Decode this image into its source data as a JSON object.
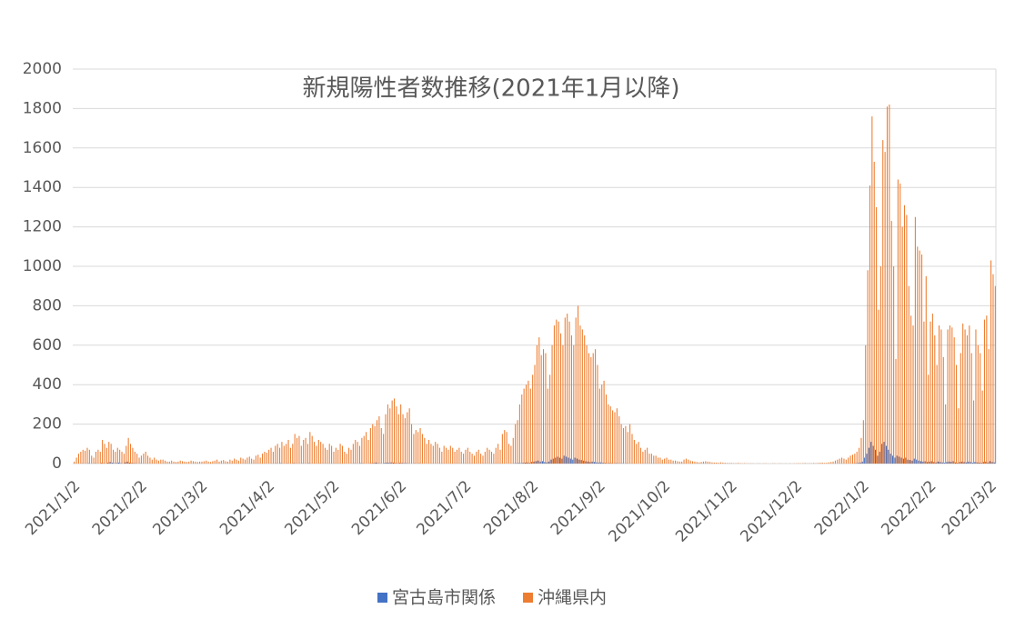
{
  "chart_data": {
    "type": "bar",
    "title": "新規陽性者数推移(2021年1月以降)",
    "categories": [
      "2021/1/2",
      null,
      null,
      null,
      null,
      null,
      null,
      null,
      null,
      null,
      null,
      null,
      null,
      null,
      null,
      null,
      null,
      null,
      null,
      null,
      null,
      null,
      null,
      null,
      null,
      null,
      null,
      null,
      null,
      null,
      null,
      "2021/2/2",
      null,
      null,
      null,
      null,
      null,
      null,
      null,
      null,
      null,
      null,
      null,
      null,
      null,
      null,
      null,
      null,
      null,
      null,
      null,
      null,
      null,
      null,
      null,
      null,
      null,
      null,
      null,
      "2021/3/2",
      null,
      null,
      null,
      null,
      null,
      null,
      null,
      null,
      null,
      null,
      null,
      null,
      null,
      null,
      null,
      null,
      null,
      null,
      null,
      null,
      null,
      null,
      null,
      null,
      null,
      null,
      null,
      null,
      null,
      null,
      "2021/4/2",
      null,
      null,
      null,
      null,
      null,
      null,
      null,
      null,
      null,
      null,
      null,
      null,
      null,
      null,
      null,
      null,
      null,
      null,
      null,
      null,
      null,
      null,
      null,
      null,
      null,
      null,
      null,
      null,
      null,
      "2021/5/2",
      null,
      null,
      null,
      null,
      null,
      null,
      null,
      null,
      null,
      null,
      null,
      null,
      null,
      null,
      null,
      null,
      null,
      null,
      null,
      null,
      null,
      null,
      null,
      null,
      null,
      null,
      null,
      null,
      null,
      null,
      "2021/6/2",
      null,
      null,
      null,
      null,
      null,
      null,
      null,
      null,
      null,
      null,
      null,
      null,
      null,
      null,
      null,
      null,
      null,
      null,
      null,
      null,
      null,
      null,
      null,
      null,
      null,
      null,
      null,
      null,
      null,
      "2021/7/2",
      null,
      null,
      null,
      null,
      null,
      null,
      null,
      null,
      null,
      null,
      null,
      null,
      null,
      null,
      null,
      null,
      null,
      null,
      null,
      null,
      null,
      null,
      null,
      null,
      null,
      null,
      null,
      null,
      null,
      null,
      "2021/8/2",
      null,
      null,
      null,
      null,
      null,
      null,
      null,
      null,
      null,
      null,
      null,
      null,
      null,
      null,
      null,
      null,
      null,
      null,
      null,
      null,
      null,
      null,
      null,
      null,
      null,
      null,
      null,
      null,
      null,
      null,
      "2021/9/2",
      null,
      null,
      null,
      null,
      null,
      null,
      null,
      null,
      null,
      null,
      null,
      null,
      null,
      null,
      null,
      null,
      null,
      null,
      null,
      null,
      null,
      null,
      null,
      null,
      null,
      null,
      null,
      null,
      null,
      "2021/10/2",
      null,
      null,
      null,
      null,
      null,
      null,
      null,
      null,
      null,
      null,
      null,
      null,
      null,
      null,
      null,
      null,
      null,
      null,
      null,
      null,
      null,
      null,
      null,
      null,
      null,
      null,
      null,
      null,
      null,
      null,
      "2021/11/2",
      null,
      null,
      null,
      null,
      null,
      null,
      null,
      null,
      null,
      null,
      null,
      null,
      null,
      null,
      null,
      null,
      null,
      null,
      null,
      null,
      null,
      null,
      null,
      null,
      null,
      null,
      null,
      null,
      null,
      "2021/12/2",
      null,
      null,
      null,
      null,
      null,
      null,
      null,
      null,
      null,
      null,
      null,
      null,
      null,
      null,
      null,
      null,
      null,
      null,
      null,
      null,
      null,
      null,
      null,
      null,
      null,
      null,
      null,
      null,
      null,
      null,
      "2022/1/2",
      null,
      null,
      null,
      null,
      null,
      null,
      null,
      null,
      null,
      null,
      null,
      null,
      null,
      null,
      null,
      null,
      null,
      null,
      null,
      null,
      null,
      null,
      null,
      null,
      null,
      null,
      null,
      null,
      null,
      null,
      "2022/2/2",
      null,
      null,
      null,
      null,
      null,
      null,
      null,
      null,
      null,
      null,
      null,
      null,
      null,
      null,
      null,
      null,
      null,
      null,
      null,
      null,
      null,
      null,
      null,
      null,
      null,
      null,
      null,
      "2022/3/2",
      null,
      null
    ],
    "series": [
      {
        "name": "宮古島市関係",
        "color": "#4472c4",
        "values": [
          0,
          0,
          0,
          0,
          1,
          0,
          0,
          2,
          0,
          0,
          1,
          0,
          0,
          3,
          2,
          0,
          5,
          8,
          4,
          2,
          3,
          5,
          2,
          0,
          6,
          10,
          5,
          3,
          2,
          1,
          0,
          1,
          0,
          0,
          0,
          0,
          0,
          0,
          0,
          0,
          0,
          0,
          0,
          0,
          0,
          0,
          0,
          0,
          0,
          0,
          0,
          0,
          0,
          0,
          0,
          0,
          0,
          0,
          0,
          0,
          0,
          0,
          0,
          0,
          0,
          0,
          0,
          0,
          0,
          0,
          0,
          0,
          0,
          0,
          0,
          0,
          0,
          0,
          0,
          0,
          0,
          0,
          0,
          0,
          0,
          0,
          0,
          0,
          0,
          0,
          0,
          0,
          0,
          0,
          1,
          0,
          2,
          0,
          0,
          1,
          0,
          0,
          2,
          0,
          0,
          0,
          1,
          0,
          0,
          2,
          0,
          0,
          0,
          0,
          1,
          0,
          0,
          0,
          0,
          0,
          0,
          0,
          0,
          0,
          0,
          0,
          0,
          0,
          0,
          0,
          1,
          0,
          0,
          2,
          1,
          0,
          0,
          1,
          2,
          3,
          5,
          2,
          1,
          0,
          3,
          5,
          4,
          6,
          5,
          3,
          2,
          4,
          3,
          2,
          2,
          1,
          0,
          0,
          1,
          0,
          1,
          0,
          0,
          0,
          0,
          0,
          0,
          0,
          0,
          0,
          0,
          0,
          0,
          0,
          0,
          0,
          0,
          0,
          0,
          0,
          0,
          0,
          0,
          0,
          0,
          0,
          0,
          0,
          0,
          0,
          0,
          0,
          0,
          0,
          0,
          0,
          0,
          0,
          0,
          0,
          0,
          0,
          0,
          0,
          1,
          2,
          3,
          2,
          4,
          5,
          6,
          4,
          8,
          10,
          12,
          15,
          10,
          12,
          8,
          6,
          10,
          20,
          25,
          30,
          35,
          30,
          25,
          40,
          35,
          30,
          25,
          20,
          30,
          25,
          20,
          18,
          15,
          12,
          10,
          8,
          10,
          8,
          6,
          5,
          6,
          4,
          3,
          2,
          3,
          2,
          1,
          2,
          1,
          1,
          1,
          0,
          1,
          0,
          0,
          0,
          0,
          0,
          0,
          0,
          0,
          0,
          0,
          0,
          0,
          0,
          0,
          0,
          0,
          0,
          0,
          0,
          0,
          0,
          0,
          0,
          0,
          0,
          0,
          0,
          0,
          0,
          0,
          0,
          0,
          0,
          0,
          0,
          0,
          0,
          0,
          0,
          0,
          0,
          0,
          0,
          0,
          0,
          0,
          0,
          0,
          0,
          0,
          0,
          0,
          0,
          0,
          0,
          0,
          0,
          0,
          0,
          0,
          0,
          0,
          0,
          0,
          0,
          0,
          0,
          0,
          0,
          0,
          0,
          0,
          0,
          0,
          0,
          0,
          0,
          0,
          0,
          0,
          0,
          0,
          0,
          0,
          0,
          0,
          0,
          0,
          0,
          0,
          0,
          0,
          0,
          0,
          0,
          0,
          0,
          0,
          0,
          0,
          0,
          0,
          0,
          0,
          1,
          2,
          3,
          5,
          10,
          30,
          50,
          80,
          110,
          90,
          70,
          40,
          60,
          100,
          110,
          90,
          70,
          50,
          40,
          30,
          40,
          35,
          30,
          25,
          30,
          20,
          18,
          15,
          25,
          20,
          15,
          12,
          10,
          12,
          8,
          10,
          12,
          8,
          6,
          10,
          8,
          6,
          4,
          8,
          10,
          9,
          12,
          6,
          4,
          8,
          10,
          8,
          6,
          10,
          8,
          4,
          8,
          6,
          5,
          4,
          8,
          10,
          6,
          12,
          8,
          6
        ]
      },
      {
        "name": "沖縄県内",
        "color": "#ed7d31",
        "values": [
          10,
          30,
          50,
          60,
          70,
          65,
          80,
          70,
          40,
          30,
          60,
          70,
          60,
          120,
          100,
          80,
          110,
          100,
          70,
          60,
          80,
          70,
          60,
          50,
          90,
          130,
          100,
          80,
          60,
          50,
          30,
          40,
          50,
          60,
          40,
          30,
          20,
          30,
          20,
          15,
          20,
          20,
          15,
          10,
          10,
          15,
          10,
          8,
          10,
          15,
          12,
          10,
          8,
          10,
          15,
          12,
          10,
          8,
          10,
          10,
          12,
          15,
          10,
          8,
          12,
          15,
          20,
          10,
          15,
          18,
          12,
          10,
          20,
          15,
          25,
          20,
          15,
          30,
          25,
          20,
          30,
          35,
          25,
          20,
          40,
          45,
          30,
          50,
          60,
          55,
          70,
          80,
          60,
          90,
          100,
          80,
          110,
          90,
          100,
          120,
          80,
          100,
          150,
          130,
          140,
          90,
          120,
          130,
          100,
          160,
          140,
          110,
          90,
          120,
          110,
          100,
          80,
          70,
          100,
          90,
          60,
          80,
          70,
          100,
          90,
          60,
          50,
          80,
          70,
          100,
          120,
          110,
          90,
          130,
          140,
          160,
          120,
          180,
          200,
          190,
          220,
          240,
          180,
          150,
          250,
          300,
          280,
          320,
          330,
          290,
          250,
          300,
          250,
          230,
          260,
          280,
          200,
          150,
          170,
          160,
          180,
          150,
          130,
          100,
          120,
          100,
          90,
          110,
          100,
          80,
          60,
          90,
          80,
          70,
          90,
          80,
          60,
          70,
          80,
          60,
          50,
          70,
          80,
          60,
          50,
          40,
          60,
          70,
          50,
          40,
          60,
          80,
          70,
          60,
          50,
          80,
          100,
          70,
          150,
          170,
          160,
          100,
          90,
          130,
          200,
          220,
          300,
          350,
          380,
          400,
          420,
          380,
          450,
          500,
          600,
          640,
          550,
          580,
          560,
          380,
          450,
          600,
          700,
          730,
          720,
          660,
          600,
          740,
          760,
          720,
          650,
          600,
          740,
          800,
          700,
          680,
          650,
          600,
          560,
          540,
          560,
          580,
          500,
          380,
          400,
          420,
          350,
          300,
          290,
          270,
          260,
          280,
          240,
          200,
          180,
          190,
          160,
          200,
          150,
          120,
          100,
          110,
          80,
          60,
          70,
          80,
          50,
          50,
          40,
          40,
          30,
          30,
          20,
          25,
          30,
          20,
          20,
          15,
          15,
          12,
          10,
          10,
          20,
          25,
          20,
          15,
          12,
          10,
          8,
          6,
          8,
          10,
          12,
          10,
          8,
          6,
          5,
          5,
          4,
          6,
          5,
          4,
          3,
          3,
          3,
          2,
          2,
          3,
          2,
          1,
          2,
          1,
          1,
          1,
          1,
          0,
          1,
          1,
          0,
          1,
          1,
          0,
          0,
          1,
          1,
          0,
          1,
          1,
          0,
          1,
          0,
          1,
          0,
          1,
          1,
          2,
          1,
          2,
          3,
          1,
          2,
          2,
          3,
          2,
          3,
          4,
          5,
          3,
          4,
          6,
          8,
          10,
          15,
          20,
          25,
          30,
          25,
          20,
          30,
          40,
          45,
          50,
          60,
          80,
          130,
          220,
          600,
          980,
          1410,
          1760,
          1530,
          1300,
          780,
          1000,
          1640,
          1580,
          1810,
          1820,
          1230,
          1000,
          530,
          1440,
          1420,
          1200,
          1310,
          1260,
          900,
          750,
          700,
          1250,
          1100,
          1080,
          1060,
          720,
          950,
          450,
          720,
          760,
          650,
          500,
          700,
          680,
          540,
          300,
          680,
          700,
          690,
          640,
          500,
          280,
          560,
          710,
          680,
          650,
          700,
          560,
          320,
          680,
          600,
          560,
          370,
          730,
          750,
          580,
          1030,
          960,
          900
        ]
      }
    ],
    "ylim": [
      0,
      2000
    ],
    "yticks": [
      0,
      200,
      400,
      600,
      800,
      1000,
      1200,
      1400,
      1600,
      1800,
      2000
    ],
    "grid": true
  }
}
